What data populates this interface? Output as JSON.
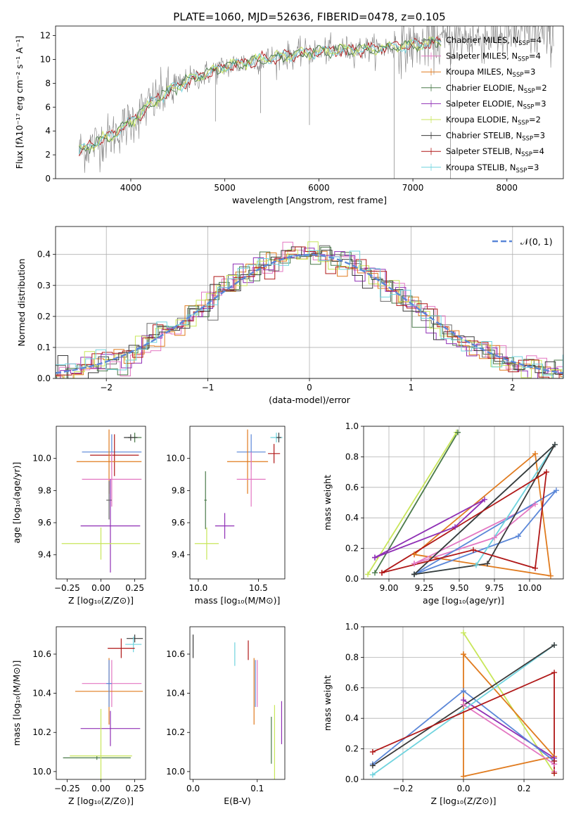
{
  "colors": {
    "c1": "#6b6b6b",
    "c2": "#e377c2",
    "c3": "#e07b1f",
    "c4": "#4a7a4a",
    "c5": "#8f2fb5",
    "c6": "#c8e65a",
    "c7": "#3a3a3a",
    "c8": "#b01818",
    "c9": "#6fd3de",
    "blue": "#5b87d8"
  },
  "chart_data": [
    {
      "type": "line",
      "title": "PLATE=1060, MJD=52636, FIBERID=0478, z=0.105",
      "xlabel": "wavelength [Angstrom, rest frame]",
      "ylabel": "Flux [fλ10⁻¹⁷ erg cm⁻² s⁻¹ A⁻¹]",
      "xlim": [
        3200,
        8600
      ],
      "ylim": [
        0,
        12.8
      ],
      "xticks": [
        4000,
        5000,
        6000,
        7000,
        8000
      ],
      "yticks": [
        0,
        2,
        4,
        6,
        8,
        10,
        12
      ],
      "continuum": {
        "x": [
          3450,
          3600,
          3800,
          4000,
          4200,
          4400,
          4600,
          5000,
          5400,
          5800,
          6200,
          6600,
          7000,
          7400,
          8000,
          8500
        ],
        "y": [
          2.3,
          2.9,
          3.6,
          4.8,
          6.2,
          7.3,
          8.2,
          9.4,
          10.0,
          10.5,
          10.8,
          10.9,
          11.2,
          11.6,
          12.0,
          12.1
        ]
      },
      "legend": [
        "Chabrier MILES, N_SSP=4",
        "Salpeter MILES, N_SSP=4",
        "Kroupa MILES, N_SSP=3",
        "Chabrier ELODIE, N_SSP=2",
        "Salpeter ELODIE, N_SSP=3",
        "Kroupa ELODIE, N_SSP=2",
        "Chabrier STELIB, N_SSP=3",
        "Salpeter STELIB, N_SSP=4",
        "Kroupa STELIB, N_SSP=3"
      ],
      "legend_placement": "right"
    },
    {
      "type": "step",
      "xlabel": "(data-model)/error",
      "ylabel": "Normed distribution",
      "xlim": [
        -2.5,
        2.5
      ],
      "ylim": [
        0,
        0.49
      ],
      "xticks": [
        -2,
        -1,
        0,
        1,
        2
      ],
      "yticks": [
        0.0,
        0.1,
        0.2,
        0.3,
        0.4
      ],
      "grid": true,
      "legend": [
        "𝒩(0, 1)"
      ],
      "legend_placement": "top-right"
    },
    {
      "type": "errorbar",
      "xlabel": "Z [log₁₀(Z/Z⊙)]",
      "ylabel": "age  [log₁₀(age/yr)]",
      "xlim": [
        -0.33,
        0.33
      ],
      "ylim": [
        9.25,
        10.2
      ],
      "xticks": [
        -0.25,
        0.0,
        0.25
      ],
      "yticks": [
        9.4,
        9.6,
        9.8,
        10.0
      ],
      "points": [
        {
          "x": 0.25,
          "y": 10.13,
          "xerr": 0.05,
          "yerr": 0.03,
          "color": "c4"
        },
        {
          "x": 0.22,
          "y": 10.13,
          "xerr": 0.05,
          "yerr": 0.02,
          "color": "c7"
        },
        {
          "x": 0.08,
          "y": 10.04,
          "xerr": 0.22,
          "yerr": 0.11,
          "color": "blue"
        },
        {
          "x": 0.1,
          "y": 10.02,
          "xerr": 0.18,
          "yerr": 0.13,
          "color": "c8"
        },
        {
          "x": 0.06,
          "y": 9.98,
          "xerr": 0.24,
          "yerr": 0.2,
          "color": "c3"
        },
        {
          "x": 0.08,
          "y": 9.87,
          "xerr": 0.22,
          "yerr": 0.17,
          "color": "c2"
        },
        {
          "x": 0.06,
          "y": 9.74,
          "xerr": 0.02,
          "yerr": 0.12,
          "color": "c1"
        },
        {
          "x": 0.07,
          "y": 9.58,
          "xerr": 0.22,
          "yerr": 0.29,
          "color": "c5"
        },
        {
          "x": 0.0,
          "y": 9.47,
          "xerr": 0.29,
          "yerr": 0.1,
          "color": "c6"
        }
      ]
    },
    {
      "type": "errorbar",
      "xlabel": "mass [log₁₀(M/M⊙)]",
      "xlim": [
        9.93,
        10.72
      ],
      "ylim": [
        9.25,
        10.2
      ],
      "xticks": [
        10.0,
        10.5
      ],
      "yticks": [
        9.4,
        9.6,
        9.8,
        10.0
      ],
      "points": [
        {
          "x": 10.65,
          "y": 10.13,
          "xerr": 0.05,
          "yerr": 0.03,
          "color": "c9"
        },
        {
          "x": 10.67,
          "y": 10.13,
          "xerr": 0.02,
          "yerr": 0.03,
          "color": "c7"
        },
        {
          "x": 10.63,
          "y": 10.03,
          "xerr": 0.05,
          "yerr": 0.06,
          "color": "c8"
        },
        {
          "x": 10.44,
          "y": 10.04,
          "xerr": 0.12,
          "yerr": 0.11,
          "color": "blue"
        },
        {
          "x": 10.41,
          "y": 9.98,
          "xerr": 0.17,
          "yerr": 0.2,
          "color": "c3"
        },
        {
          "x": 10.44,
          "y": 9.87,
          "xerr": 0.12,
          "yerr": 0.17,
          "color": "c2"
        },
        {
          "x": 10.22,
          "y": 9.58,
          "xerr": 0.08,
          "yerr": 0.08,
          "color": "c5"
        },
        {
          "x": 10.07,
          "y": 9.47,
          "xerr": 0.1,
          "yerr": 0.1,
          "color": "c6"
        },
        {
          "x": 10.06,
          "y": 9.74,
          "xerr": 0.01,
          "yerr": 0.18,
          "color": "c4"
        }
      ]
    },
    {
      "type": "line",
      "xlabel": "age  [log₁₀(age/yr)]",
      "ylabel": "mass weight",
      "xlim": [
        8.82,
        10.24
      ],
      "ylim": [
        0,
        1.0
      ],
      "xticks": [
        9.0,
        9.25,
        9.5,
        9.75,
        10.0
      ],
      "yticks": [
        0.0,
        0.2,
        0.4,
        0.6,
        0.8,
        1.0
      ],
      "grid": true,
      "series": [
        {
          "color": "c6",
          "x": [
            8.85,
            9.48
          ],
          "y": [
            0.03,
            0.96
          ]
        },
        {
          "color": "c4",
          "x": [
            8.9,
            9.49
          ],
          "y": [
            0.04,
            0.96
          ]
        },
        {
          "color": "c3",
          "x": [
            9.18,
            10.04,
            10.15,
            9.18
          ],
          "y": [
            0.16,
            0.82,
            0.02,
            0.16
          ]
        },
        {
          "color": "c5",
          "x": [
            8.9,
            9.47,
            9.68,
            8.9
          ],
          "y": [
            0.14,
            0.34,
            0.52,
            0.14
          ]
        },
        {
          "color": "c2",
          "x": [
            9.18,
            9.75,
            10.04,
            9.18
          ],
          "y": [
            0.1,
            0.27,
            0.49,
            0.1
          ]
        },
        {
          "color": "blue",
          "x": [
            9.18,
            9.92,
            10.19,
            9.18
          ],
          "y": [
            0.03,
            0.28,
            0.58,
            0.03
          ]
        },
        {
          "color": "c9",
          "x": [
            9.18,
            9.62,
            10.18,
            9.18
          ],
          "y": [
            0.03,
            0.09,
            0.88,
            0.03
          ]
        },
        {
          "color": "c7",
          "x": [
            9.18,
            9.7,
            10.18,
            9.18
          ],
          "y": [
            0.03,
            0.1,
            0.88,
            0.03
          ]
        },
        {
          "color": "c8",
          "x": [
            8.95,
            9.6,
            10.04,
            10.12,
            8.95
          ],
          "y": [
            0.04,
            0.19,
            0.07,
            0.7,
            0.04
          ]
        }
      ]
    },
    {
      "type": "errorbar",
      "xlabel": "Z [log₁₀(Z/Z⊙)]",
      "ylabel": "mass [log₁₀(M/M⊙)]",
      "xlim": [
        -0.33,
        0.33
      ],
      "ylim": [
        9.96,
        10.74
      ],
      "xticks": [
        -0.25,
        0.0,
        0.25
      ],
      "yticks": [
        10.0,
        10.2,
        10.4,
        10.6
      ],
      "points": [
        {
          "x": 0.25,
          "y": 10.68,
          "xerr": 0.06,
          "yerr": 0.02,
          "color": "c7"
        },
        {
          "x": 0.24,
          "y": 10.65,
          "xerr": 0.06,
          "yerr": 0.04,
          "color": "c9"
        },
        {
          "x": 0.15,
          "y": 10.63,
          "xerr": 0.1,
          "yerr": 0.05,
          "color": "c8"
        },
        {
          "x": 0.08,
          "y": 10.45,
          "xerr": 0.22,
          "yerr": 0.12,
          "color": "c2"
        },
        {
          "x": 0.06,
          "y": 10.41,
          "xerr": 0.25,
          "yerr": 0.17,
          "color": "c3"
        },
        {
          "x": 0.06,
          "y": 10.45,
          "xerr": 0.02,
          "yerr": 0.12,
          "color": "blue"
        },
        {
          "x": 0.07,
          "y": 10.22,
          "xerr": 0.22,
          "yerr": 0.09,
          "color": "c5"
        },
        {
          "x": -0.03,
          "y": 10.07,
          "xerr": 0.25,
          "yerr": 0.01,
          "color": "c4"
        },
        {
          "x": 0.0,
          "y": 10.08,
          "xerr": 0.23,
          "yerr": 0.24,
          "color": "c6"
        }
      ]
    },
    {
      "type": "errorbar",
      "xlabel": "E(B-V)",
      "xlim": [
        -0.005,
        0.143
      ],
      "ylim": [
        9.96,
        10.74
      ],
      "xticks": [
        0.0,
        0.1
      ],
      "yticks": [
        10.0,
        10.2,
        10.4,
        10.6
      ],
      "points": [
        {
          "x": 0.0,
          "y": 10.64,
          "yerr": 0.06,
          "color": "c7"
        },
        {
          "x": 0.065,
          "y": 10.6,
          "yerr": 0.06,
          "color": "c9"
        },
        {
          "x": 0.086,
          "y": 10.62,
          "yerr": 0.05,
          "color": "c8"
        },
        {
          "x": 0.095,
          "y": 10.41,
          "yerr": 0.17,
          "color": "c3"
        },
        {
          "x": 0.1,
          "y": 10.45,
          "yerr": 0.12,
          "color": "c2"
        },
        {
          "x": 0.122,
          "y": 10.16,
          "yerr": 0.12,
          "color": "c4"
        },
        {
          "x": 0.127,
          "y": 10.1,
          "yerr": 0.24,
          "color": "c6"
        },
        {
          "x": 0.138,
          "y": 10.25,
          "yerr": 0.11,
          "color": "c5"
        },
        {
          "x": 0.097,
          "y": 10.45,
          "yerr": 0.12,
          "color": "blue"
        }
      ]
    },
    {
      "type": "line",
      "xlabel": "Z [log₁₀(Z/Z⊙)]",
      "ylabel": "mass weight",
      "xlim": [
        -0.33,
        0.33
      ],
      "ylim": [
        0,
        1.0
      ],
      "xticks": [
        -0.2,
        0.0,
        0.2
      ],
      "yticks": [
        0.0,
        0.2,
        0.4,
        0.6,
        0.8,
        1.0
      ],
      "grid": true,
      "series": [
        {
          "color": "c6",
          "x": [
            0.0,
            0.3
          ],
          "y": [
            0.96,
            0.04
          ]
        },
        {
          "color": "c3",
          "x": [
            0.0,
            0.0,
            0.3,
            0.0
          ],
          "y": [
            0.82,
            0.02,
            0.15,
            0.82
          ]
        },
        {
          "color": "c5",
          "x": [
            0.0,
            0.3,
            0.3
          ],
          "y": [
            0.52,
            0.14,
            0.1
          ]
        },
        {
          "color": "c2",
          "x": [
            0.0,
            0.3,
            0.3
          ],
          "y": [
            0.49,
            0.1,
            0.05
          ]
        },
        {
          "color": "blue",
          "x": [
            -0.3,
            0.0,
            0.3
          ],
          "y": [
            0.1,
            0.58,
            0.12
          ]
        },
        {
          "color": "c9",
          "x": [
            -0.3,
            0.3
          ],
          "y": [
            0.03,
            0.88
          ]
        },
        {
          "color": "c7",
          "x": [
            -0.3,
            0.3
          ],
          "y": [
            0.09,
            0.88
          ]
        },
        {
          "color": "c8",
          "x": [
            -0.3,
            0.3,
            0.3,
            0.3
          ],
          "y": [
            0.18,
            0.7,
            0.12,
            0.04
          ]
        }
      ]
    }
  ]
}
